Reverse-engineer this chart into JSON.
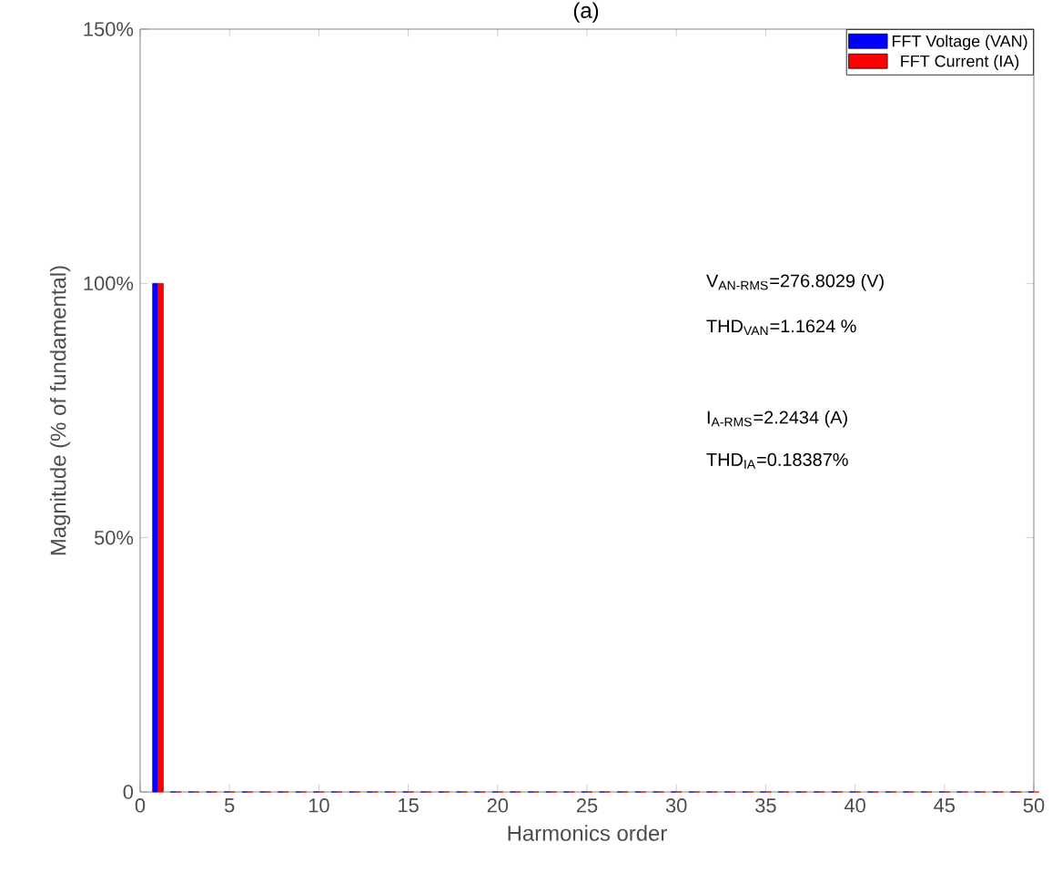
{
  "chart_data": {
    "type": "bar",
    "title": "(a)",
    "xlabel": "Harmonics order",
    "ylabel": "Magnitude (% of fundamental)",
    "x": [
      1,
      2,
      3,
      4,
      5,
      6,
      7,
      8,
      9,
      10,
      11,
      12,
      13,
      14,
      15,
      16,
      17,
      18,
      19,
      20,
      21,
      22,
      23,
      24,
      25,
      26,
      27,
      28,
      29,
      30,
      31,
      32,
      33,
      34,
      35,
      36,
      37,
      38,
      39,
      40,
      41,
      42,
      43,
      44,
      45,
      46,
      47,
      48,
      49,
      50
    ],
    "series": [
      {
        "name": "FFT Voltage (VAN)",
        "color": "#0000ff",
        "values": [
          100,
          0,
          0,
          0,
          0,
          0,
          0,
          0,
          0,
          0,
          0,
          0,
          0,
          0,
          0,
          0,
          0,
          0,
          0,
          0,
          0,
          0,
          0,
          0,
          0,
          0,
          0,
          0,
          0,
          0,
          0,
          0,
          0,
          0,
          0,
          0,
          0,
          0,
          0,
          0,
          0,
          0,
          0,
          0,
          0,
          0,
          0,
          0,
          0,
          0
        ]
      },
      {
        "name": "FFT Current (IA)",
        "color": "#ff0000",
        "values": [
          100,
          0,
          0,
          0,
          0,
          0,
          0,
          0,
          0,
          0,
          0,
          0,
          0,
          0,
          0,
          0,
          0,
          0,
          0,
          0,
          0,
          0,
          0,
          0,
          0,
          0,
          0,
          0,
          0,
          0,
          0,
          0,
          0,
          0,
          0,
          0,
          0,
          0,
          0,
          0,
          0,
          0,
          0,
          0,
          0,
          0,
          0,
          0,
          0,
          0
        ]
      }
    ],
    "xlim": [
      0,
      50
    ],
    "xticks": [
      0,
      5,
      10,
      15,
      20,
      25,
      30,
      35,
      40,
      45,
      50
    ],
    "ylim": [
      0,
      150
    ],
    "yticks": [
      0,
      {
        "value": 50,
        "label": "50%"
      },
      {
        "value": 100,
        "label": "100%"
      },
      {
        "value": 150,
        "label": "150%"
      }
    ],
    "annotations": [
      "V$_{AN-RMS}$=276.8029 (V)",
      "THD$_{VAN}$=1.1624 %",
      "I$_{A-RMS}$=2.2434 (A)",
      "THD$_{IA}$=0.18387%"
    ],
    "legend": "top right",
    "grid": false
  }
}
